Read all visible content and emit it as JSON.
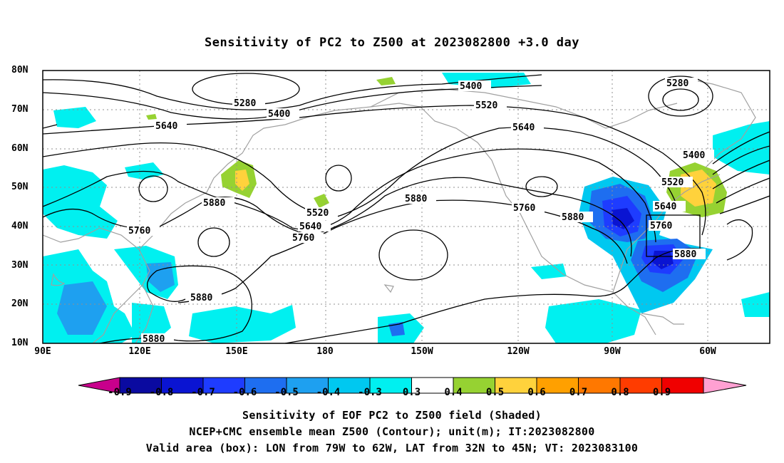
{
  "title": "Sensitivity of PC2 to Z500 at 2023082800 +3.0 day",
  "lat_labels": [
    "80N",
    "70N",
    "60N",
    "50N",
    "40N",
    "30N",
    "20N",
    "10N"
  ],
  "lon_labels": [
    "90E",
    "120E",
    "150E",
    "180",
    "150W",
    "120W",
    "90W",
    "60W"
  ],
  "contour_labels": [
    "5280",
    "5400",
    "5640",
    "5880",
    "5760",
    "5880",
    "5880",
    "5520",
    "5640",
    "5760",
    "5400",
    "5520",
    "5640",
    "5880",
    "5760",
    "5280",
    "5400",
    "5520",
    "5640",
    "5760",
    "5880"
  ],
  "colorbar": {
    "labels": [
      "-0.9",
      "-0.8",
      "-0.7",
      "-0.6",
      "-0.5",
      "-0.4",
      "-0.3",
      "0.3",
      "0.4",
      "0.5",
      "0.6",
      "0.7",
      "0.8",
      "0.9"
    ],
    "colors": [
      "#c8008c",
      "#0a0aa0",
      "#0a14d2",
      "#1e3cff",
      "#1e6ef0",
      "#1ea0f0",
      "#00c8f0",
      "#00f0f0",
      "#ffffff",
      "#96d232",
      "#ffd23c",
      "#ffa000",
      "#ff7800",
      "#ff3c00",
      "#f00000",
      "#ffa0d2"
    ]
  },
  "footer": [
    "Sensitivity of EOF PC2 to Z500 field (Shaded)",
    "NCEP+CMC ensemble mean Z500 (Contour); unit(m); IT:2023082800",
    "Valid area (box): LON from 79W to 62W, LAT from 32N to 45N; VT: 2023083100"
  ]
}
